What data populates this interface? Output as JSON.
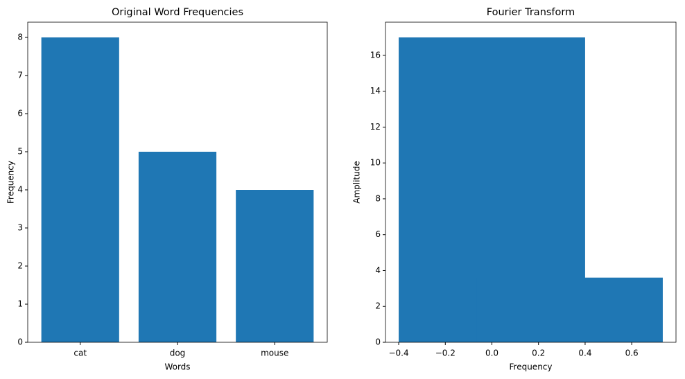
{
  "chart_data": [
    {
      "type": "bar",
      "title": "Original Word Frequencies",
      "x_label": "Words",
      "y_label": "Frequency",
      "categories": [
        "cat",
        "dog",
        "mouse"
      ],
      "values": [
        8,
        5,
        4
      ],
      "color": "#1f77b4",
      "bar_width": 0.8,
      "ylim": [
        0,
        8.4
      ],
      "yticks": [
        0,
        1,
        2,
        3,
        4,
        5,
        6,
        7,
        8
      ]
    },
    {
      "type": "numeric-bar",
      "title": "Fourier Transform",
      "x_label": "Frequency",
      "y_label": "Amplitude",
      "x": [
        0,
        0.3333
      ],
      "values": [
        17,
        3.6056
      ],
      "color": "#1f77b4",
      "bar_width": 0.8,
      "xlim": [
        -0.4567,
        0.79
      ],
      "xticks": [
        {
          "value": -0.4,
          "label": "−0.4"
        },
        {
          "value": -0.2,
          "label": "−0.2"
        },
        {
          "value": 0,
          "label": "0.0"
        },
        0.2,
        0.4,
        0.6
      ],
      "ylim": [
        0,
        17.85
      ],
      "yticks": [
        0,
        2,
        4,
        6,
        8,
        10,
        12,
        14,
        16
      ]
    }
  ]
}
